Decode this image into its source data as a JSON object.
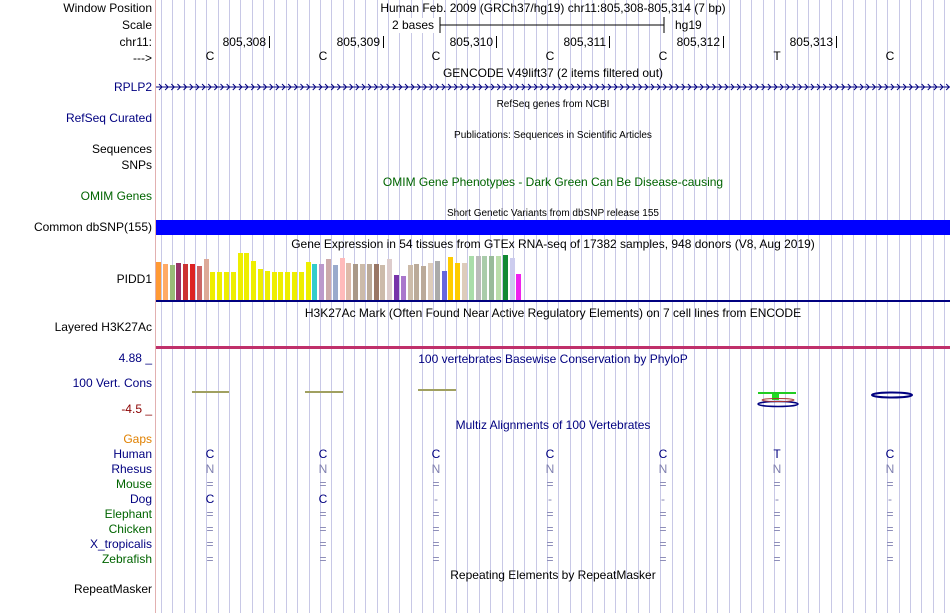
{
  "labels": {
    "window_position": "Window Position",
    "scale": "Scale",
    "chrom": "chr11:",
    "arrow": "--->",
    "rplp2": "RPLP2",
    "refseq": "RefSeq Curated",
    "sequences": "Sequences",
    "snps": "SNPs",
    "omim": "OMIM Genes",
    "common_dbsnp": "Common dbSNP(155)",
    "pidd1": "PIDD1",
    "h3k27ac": "Layered H3K27Ac",
    "cons_max": "4.88 _",
    "cons_label": "100 Vert. Cons",
    "cons_min": "-4.5 _",
    "gaps": "Gaps",
    "repeatmasker": "RepeatMasker"
  },
  "header": {
    "assembly": "Human Feb. 2009 (GRCh37/hg19)   chr11:805,308-805,314 (7 bp)",
    "scale_text": "2 bases",
    "scale_db": "hg19",
    "positions": [
      "805,308",
      "805,309",
      "805,310",
      "805,311",
      "805,312",
      "805,313"
    ],
    "bases": [
      "C",
      "C",
      "C",
      "C",
      "C",
      "T",
      "C"
    ]
  },
  "tracks": {
    "gencode": "GENCODE V49lift37 (2 items filtered out)",
    "refseq": "RefSeq genes from NCBI",
    "publications": "Publications: Sequences in Scientific Articles",
    "omim": "OMIM Gene Phenotypes - Dark Green Can Be Disease-causing",
    "dbsnp": "Short Genetic Variants from dbSNP release 155",
    "gtex": "Gene Expression in 54 tissues from GTEx RNA-seq of 17382 samples, 948 donors (V8, Aug 2019)",
    "h3k27ac": "H3K27Ac Mark (Often Found Near Active Regulatory Elements) on 7 cell lines from ENCODE",
    "phylop": "100 vertebrates Basewise Conservation by PhyloP",
    "multiz": "Multiz Alignments of 100 Vertebrates",
    "repeatmasker": "Repeating Elements by RepeatMasker"
  },
  "gtex_levels": [
    {
      "c": "#ff9933",
      "v": 0.81
    },
    {
      "c": "#ffaa66",
      "v": 0.76
    },
    {
      "c": "#99bb77",
      "v": 0.74
    },
    {
      "c": "#993366",
      "v": 0.79
    },
    {
      "c": "#cc3333",
      "v": 0.77
    },
    {
      "c": "#dd2222",
      "v": 0.77
    },
    {
      "c": "#cc6666",
      "v": 0.72
    },
    {
      "c": "#ddaa99",
      "v": 0.87
    },
    {
      "c": "#eeee00",
      "v": 0.6
    },
    {
      "c": "#eeee00",
      "v": 0.6
    },
    {
      "c": "#eeee00",
      "v": 0.6
    },
    {
      "c": "#eeee00",
      "v": 0.6
    },
    {
      "c": "#eeee00",
      "v": 1.0
    },
    {
      "c": "#eeee00",
      "v": 1.0
    },
    {
      "c": "#eeee00",
      "v": 0.83
    },
    {
      "c": "#eeee00",
      "v": 0.66
    },
    {
      "c": "#eeee00",
      "v": 0.62
    },
    {
      "c": "#eeee00",
      "v": 0.6
    },
    {
      "c": "#eeee00",
      "v": 0.6
    },
    {
      "c": "#eeee00",
      "v": 0.6
    },
    {
      "c": "#eeee00",
      "v": 0.6
    },
    {
      "c": "#eeee00",
      "v": 0.6
    },
    {
      "c": "#eeee00",
      "v": 0.81
    },
    {
      "c": "#33cccc",
      "v": 0.77
    },
    {
      "c": "#bb99cc",
      "v": 0.76
    },
    {
      "c": "#ccaaaa",
      "v": 0.87
    },
    {
      "c": "#99aacc",
      "v": 0.74
    },
    {
      "c": "#ffbbbb",
      "v": 0.89
    },
    {
      "c": "#ddbbaa",
      "v": 0.79
    },
    {
      "c": "#aa9988",
      "v": 0.77
    },
    {
      "c": "#ccbbaa",
      "v": 0.77
    },
    {
      "c": "#bbaa99",
      "v": 0.76
    },
    {
      "c": "#997766",
      "v": 0.77
    },
    {
      "c": "#ccbbaa",
      "v": 0.74
    },
    {
      "c": "#ddcccc",
      "v": 0.87
    },
    {
      "c": "#7733aa",
      "v": 0.53
    },
    {
      "c": "#aa77cc",
      "v": 0.51
    },
    {
      "c": "#ccbbaa",
      "v": 0.74
    },
    {
      "c": "#bbaa99",
      "v": 0.77
    },
    {
      "c": "#bbaa99",
      "v": 0.72
    },
    {
      "c": "#ddccbb",
      "v": 0.79
    },
    {
      "c": "#aaaaaa",
      "v": 0.83
    },
    {
      "c": "#6666dd",
      "v": 0.62
    },
    {
      "c": "#ffcc00",
      "v": 0.91
    },
    {
      "c": "#ffcc00",
      "v": 0.79
    },
    {
      "c": "#ddccbb",
      "v": 0.79
    },
    {
      "c": "#aaddaa",
      "v": 0.94
    },
    {
      "c": "#bbbbbb",
      "v": 0.94
    },
    {
      "c": "#aaccaa",
      "v": 0.93
    },
    {
      "c": "#99bb99",
      "v": 0.93
    },
    {
      "c": "#bbddaa",
      "v": 0.93
    },
    {
      "c": "#118833",
      "v": 0.96
    },
    {
      "c": "#ccccee",
      "v": 0.89
    },
    {
      "c": "#ee22ee",
      "v": 0.55
    }
  ],
  "species": [
    {
      "name": "Human",
      "color": "#000080",
      "row": [
        "C",
        "C",
        "C",
        "C",
        "C",
        "T",
        "C"
      ]
    },
    {
      "name": "Rhesus",
      "color": "#000080",
      "row": [
        "N",
        "N",
        "N",
        "N",
        "N",
        "N",
        "N"
      ]
    },
    {
      "name": "Mouse",
      "color": "#006400",
      "row": [
        "=",
        "=",
        "=",
        "=",
        "=",
        "=",
        "="
      ]
    },
    {
      "name": "Dog",
      "color": "#000080",
      "row": [
        "C",
        "C",
        "-",
        "-",
        "-",
        "-",
        "-"
      ]
    },
    {
      "name": "Elephant",
      "color": "#006400",
      "row": [
        "=",
        "=",
        "=",
        "=",
        "=",
        "=",
        "="
      ]
    },
    {
      "name": "Chicken",
      "color": "#006400",
      "row": [
        "=",
        "=",
        "=",
        "=",
        "=",
        "=",
        "="
      ]
    },
    {
      "name": "X_tropicalis",
      "color": "#000080",
      "row": [
        "=",
        "=",
        "=",
        "=",
        "=",
        "=",
        "="
      ]
    },
    {
      "name": "Zebrafish",
      "color": "#006400",
      "row": [
        "=",
        "=",
        "=",
        "=",
        "=",
        "=",
        "="
      ]
    }
  ],
  "colors": {
    "label_blue": "#000080",
    "label_green": "#006400",
    "dbsnp_bar": "#0000ff",
    "gaps_orange": "#e08000",
    "grid": "#c8c8e6",
    "phylop_max": "#000080",
    "phylop_min": "#8b0000"
  }
}
